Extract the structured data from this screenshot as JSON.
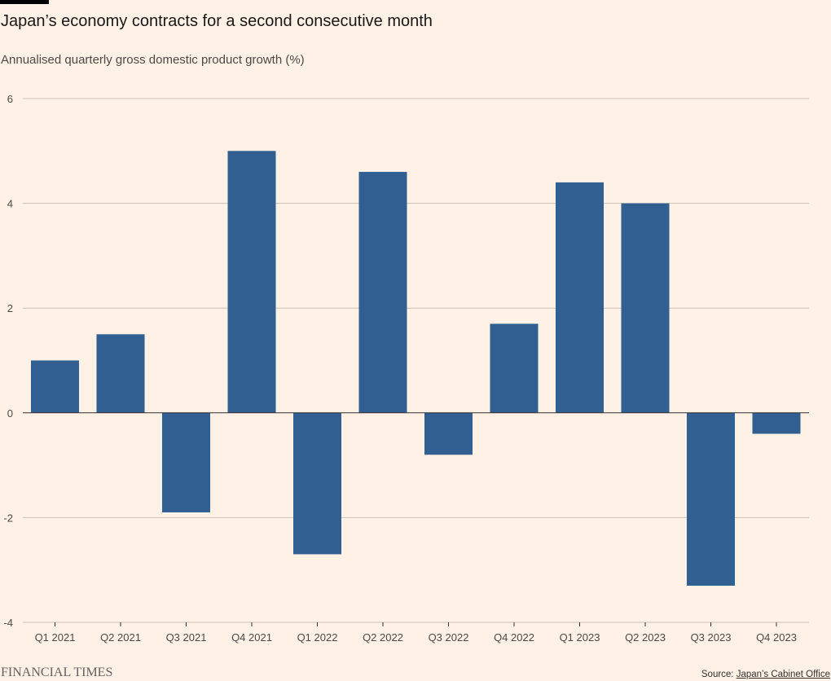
{
  "chart_data": {
    "type": "bar",
    "title": "Japan’s economy contracts for a second consecutive month",
    "subtitle": "Annualised quarterly gross domestic product growth (%)",
    "categories": [
      "Q1 2021",
      "Q2 2021",
      "Q3 2021",
      "Q4 2021",
      "Q1 2022",
      "Q2 2022",
      "Q3 2022",
      "Q4 2022",
      "Q1 2023",
      "Q2 2023",
      "Q3 2023",
      "Q4 2023"
    ],
    "values": [
      1.0,
      1.5,
      -1.9,
      5.0,
      -2.7,
      4.6,
      -0.8,
      1.7,
      4.4,
      4.0,
      -3.3,
      -0.4
    ],
    "ylim": [
      -4,
      6
    ],
    "yticks": [
      6,
      4,
      2,
      0,
      -2,
      -4
    ],
    "ytick_labels": [
      "6",
      "4",
      "2",
      "0",
      "-2",
      "-4"
    ],
    "grid": true,
    "bar_color": "#325f92",
    "gridline_color": "#ccc1b7",
    "background_color": "#fff1e5"
  },
  "footer": {
    "brand": "FINANCIAL TIMES",
    "source_prefix": "Source: ",
    "source_link": "Japan’s Cabinet Office"
  }
}
